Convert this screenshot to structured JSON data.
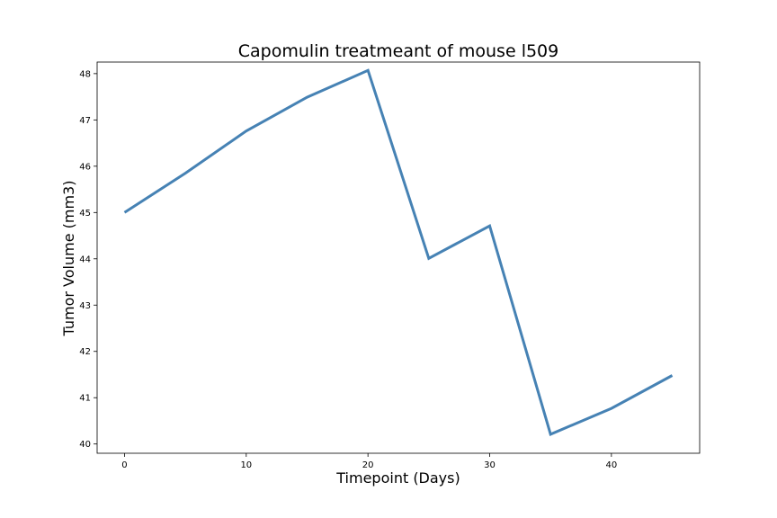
{
  "chart_data": {
    "type": "line",
    "title": "Capomulin treatmeant of mouse l509",
    "xlabel": "Timepoint (Days)",
    "ylabel": "Tumor Volume (mm3)",
    "xlim": [
      -2.25,
      47.25
    ],
    "ylim": [
      39.8,
      48.25
    ],
    "xticks": [
      0,
      10,
      20,
      30,
      40
    ],
    "yticks": [
      40,
      41,
      42,
      43,
      44,
      45,
      46,
      47,
      48
    ],
    "grid": false,
    "legend": "none",
    "series": [
      {
        "color": "#4682b4",
        "x": [
          0,
          5,
          10,
          15,
          20,
          25,
          30,
          35,
          40,
          45
        ],
        "y": [
          45.0,
          45.85,
          46.76,
          47.49,
          48.07,
          44.01,
          44.71,
          40.21,
          40.77,
          41.48
        ]
      }
    ]
  }
}
